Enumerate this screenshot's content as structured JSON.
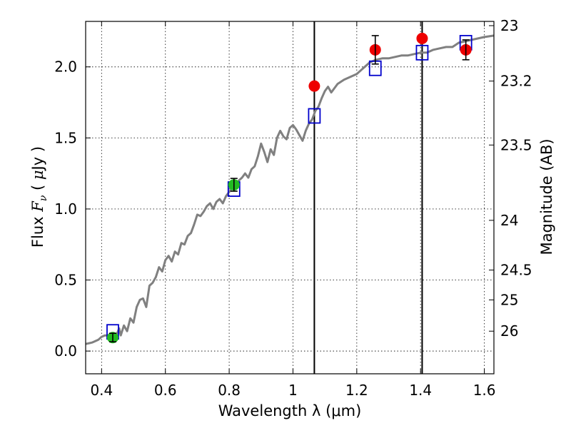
{
  "chart_data": {
    "type": "scatter",
    "title": "",
    "xlabel": "Wavelength  λ (μm)",
    "ylabel": "Flux  F_ν  ( μJy )",
    "y2label": "Magnitude (AB)",
    "xlim": [
      0.35,
      1.63
    ],
    "ylim": [
      -0.16,
      2.32
    ],
    "grid": true,
    "x_ticks": [
      0.4,
      0.6,
      0.8,
      1.0,
      1.2,
      1.4,
      1.6
    ],
    "x_tick_labels": [
      "0.4",
      "0.6",
      "0.8",
      "1",
      "1.2",
      "1.4",
      "1.6"
    ],
    "y_ticks": [
      0.0,
      0.5,
      1.0,
      1.5,
      2.0
    ],
    "y_tick_labels": [
      "0.0",
      "0.5",
      "1.0",
      "1.5",
      "2.0"
    ],
    "y2_ticks": [
      {
        "label": "23",
        "flux": 2.29
      },
      {
        "label": "23.2",
        "flux": 1.9
      },
      {
        "label": "23.5",
        "flux": 1.45
      },
      {
        "label": "24",
        "flux": 0.92
      },
      {
        "label": "24.5",
        "flux": 0.57
      },
      {
        "label": "25",
        "flux": 0.36
      },
      {
        "label": "26",
        "flux": 0.14
      }
    ],
    "vertical_lines": [
      1.067,
      1.405
    ],
    "colors": {
      "model": "#808080",
      "observed_optical": "#22bb22",
      "observed_nir": "#ee0000",
      "model_photometry": "#0000cc",
      "vlines": "#000000"
    },
    "series": [
      {
        "kind": "model-spectrum",
        "x": [
          0.35,
          0.37,
          0.38,
          0.39,
          0.4,
          0.41,
          0.42,
          0.43,
          0.44,
          0.45,
          0.455,
          0.46,
          0.47,
          0.48,
          0.49,
          0.5,
          0.51,
          0.52,
          0.53,
          0.54,
          0.55,
          0.56,
          0.57,
          0.58,
          0.59,
          0.6,
          0.61,
          0.62,
          0.63,
          0.64,
          0.65,
          0.66,
          0.67,
          0.68,
          0.69,
          0.7,
          0.71,
          0.72,
          0.73,
          0.74,
          0.75,
          0.76,
          0.77,
          0.78,
          0.79,
          0.8,
          0.81,
          0.82,
          0.83,
          0.84,
          0.85,
          0.86,
          0.87,
          0.88,
          0.89,
          0.9,
          0.91,
          0.92,
          0.93,
          0.94,
          0.95,
          0.96,
          0.97,
          0.98,
          0.99,
          1.0,
          1.01,
          1.02,
          1.03,
          1.04,
          1.05,
          1.06,
          1.07,
          1.08,
          1.09,
          1.1,
          1.11,
          1.12,
          1.14,
          1.16,
          1.18,
          1.2,
          1.22,
          1.24,
          1.26,
          1.28,
          1.3,
          1.32,
          1.34,
          1.36,
          1.38,
          1.4,
          1.42,
          1.44,
          1.46,
          1.48,
          1.5,
          1.52,
          1.54,
          1.56,
          1.58,
          1.6,
          1.63
        ],
        "y": [
          0.05,
          0.06,
          0.07,
          0.08,
          0.1,
          0.11,
          0.11,
          0.12,
          0.1,
          0.13,
          0.16,
          0.11,
          0.18,
          0.14,
          0.23,
          0.2,
          0.31,
          0.36,
          0.37,
          0.31,
          0.46,
          0.48,
          0.52,
          0.59,
          0.56,
          0.64,
          0.67,
          0.63,
          0.7,
          0.68,
          0.76,
          0.75,
          0.81,
          0.83,
          0.89,
          0.96,
          0.95,
          0.98,
          1.02,
          1.04,
          1.0,
          1.05,
          1.07,
          1.04,
          1.09,
          1.12,
          1.15,
          1.17,
          1.2,
          1.22,
          1.25,
          1.22,
          1.28,
          1.3,
          1.37,
          1.46,
          1.4,
          1.33,
          1.42,
          1.38,
          1.5,
          1.55,
          1.51,
          1.49,
          1.57,
          1.59,
          1.56,
          1.52,
          1.48,
          1.55,
          1.6,
          1.63,
          1.69,
          1.72,
          1.78,
          1.83,
          1.86,
          1.82,
          1.88,
          1.91,
          1.93,
          1.95,
          1.99,
          2.03,
          2.05,
          2.06,
          2.06,
          2.07,
          2.08,
          2.08,
          2.09,
          2.1,
          2.1,
          2.12,
          2.13,
          2.14,
          2.14,
          2.17,
          2.18,
          2.19,
          2.2,
          2.21,
          2.22
        ]
      },
      {
        "kind": "observed-optical",
        "points": [
          {
            "x": 0.435,
            "y": 0.095,
            "err": 0.03
          },
          {
            "x": 0.815,
            "y": 1.17,
            "err": 0.045
          }
        ]
      },
      {
        "kind": "observed-nir",
        "points": [
          {
            "x": 1.067,
            "y": 1.865,
            "err": 0
          },
          {
            "x": 1.258,
            "y": 2.12,
            "err": 0.1
          },
          {
            "x": 1.405,
            "y": 2.2,
            "err": 0
          },
          {
            "x": 1.542,
            "y": 2.12,
            "err": 0.07
          }
        ]
      },
      {
        "kind": "model-photometry",
        "points": [
          {
            "x": 0.435,
            "y": 0.135
          },
          {
            "x": 0.815,
            "y": 1.14
          },
          {
            "x": 1.067,
            "y": 1.655
          },
          {
            "x": 1.258,
            "y": 1.99
          },
          {
            "x": 1.405,
            "y": 2.1
          },
          {
            "x": 1.542,
            "y": 2.17
          }
        ]
      }
    ]
  }
}
